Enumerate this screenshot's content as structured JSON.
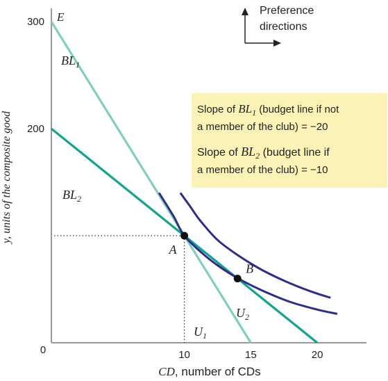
{
  "chart_data": {
    "type": "line",
    "xlabel_var": "CD",
    "xlabel_rest": ", number of CDs",
    "ylabel": "y, units of the composite good",
    "y_axis_top_label": "E",
    "origin_label": "0",
    "xlim": [
      0,
      23.7
    ],
    "ylim": [
      0,
      315
    ],
    "x_ticks": [
      {
        "value": 10,
        "label": "10"
      },
      {
        "value": 15,
        "label": "15"
      },
      {
        "value": 20,
        "label": "20"
      }
    ],
    "y_ticks": [
      {
        "value": 200,
        "label": "200"
      },
      {
        "value": 300,
        "label": "300"
      }
    ],
    "budget_lines": [
      {
        "name": "BL",
        "sub": "1",
        "color": "#7fcfbd",
        "points": [
          [
            0,
            300
          ],
          [
            15,
            0
          ]
        ]
      },
      {
        "name": "BL",
        "sub": "2",
        "color": "#10a58a",
        "points": [
          [
            0,
            200
          ],
          [
            20,
            0
          ]
        ]
      }
    ],
    "indifference_curves": [
      {
        "name": "U",
        "sub": "1",
        "color": "#2e2d8c",
        "points": [
          [
            8.1,
            140
          ],
          [
            9.2,
            118
          ],
          [
            10,
            100
          ],
          [
            11.5,
            82
          ],
          [
            13,
            68
          ],
          [
            14.5,
            57
          ],
          [
            16,
            48
          ],
          [
            18,
            38
          ],
          [
            20,
            31
          ],
          [
            21.5,
            27
          ]
        ]
      },
      {
        "name": "U",
        "sub": "2",
        "color": "#2e2d8c",
        "points": [
          [
            9.7,
            140
          ],
          [
            10.4,
            128
          ],
          [
            11.2,
            114
          ],
          [
            12.5,
            96
          ],
          [
            14,
            82
          ],
          [
            15.7,
            69
          ],
          [
            17.5,
            58
          ],
          [
            19.5,
            48
          ],
          [
            21,
            42
          ]
        ]
      }
    ],
    "points": [
      {
        "name": "A",
        "x": 10,
        "y": 100
      },
      {
        "name": "B",
        "x": 14,
        "y": 60
      }
    ],
    "preference_label_line1": "Preference",
    "preference_label_line2": "directions",
    "legend_box": {
      "background": "#fbf3b6",
      "line1_prefix": "Slope of ",
      "line1_var": "BL",
      "line1_sub": "1",
      "line1_suffix": " (budget line if not",
      "line2": "a member of the club) = −20",
      "line3_prefix": "Slope of ",
      "line3_var": "BL",
      "line3_sub": "2",
      "line3_suffix": " (budget line if",
      "line4": "a member of the club) = −10"
    },
    "colors": {
      "axis": "#999999",
      "dots": "#111111",
      "text": "#222222"
    }
  }
}
